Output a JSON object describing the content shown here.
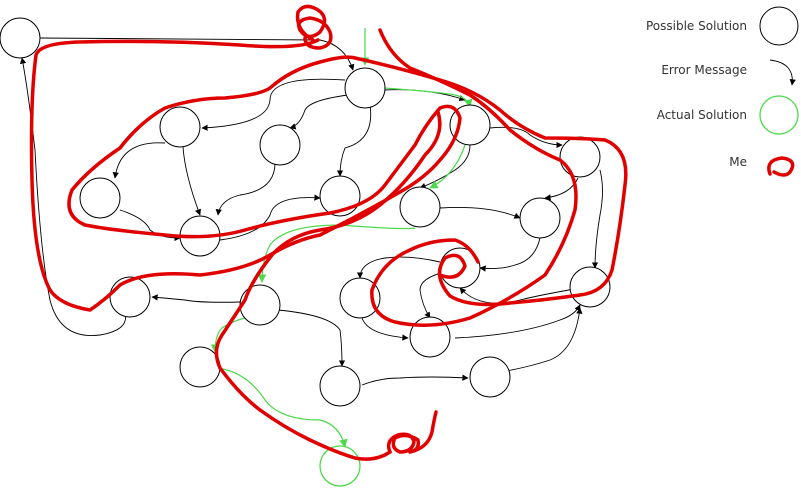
{
  "legend": {
    "possible_solution": "Possible Solution",
    "error_message": "Error Message",
    "actual_solution": "Actual Solution",
    "me": "Me"
  },
  "colors": {
    "node": "#000000",
    "arrow": "#000000",
    "solution": "#4cd94c",
    "me_path": "#e00000"
  }
}
